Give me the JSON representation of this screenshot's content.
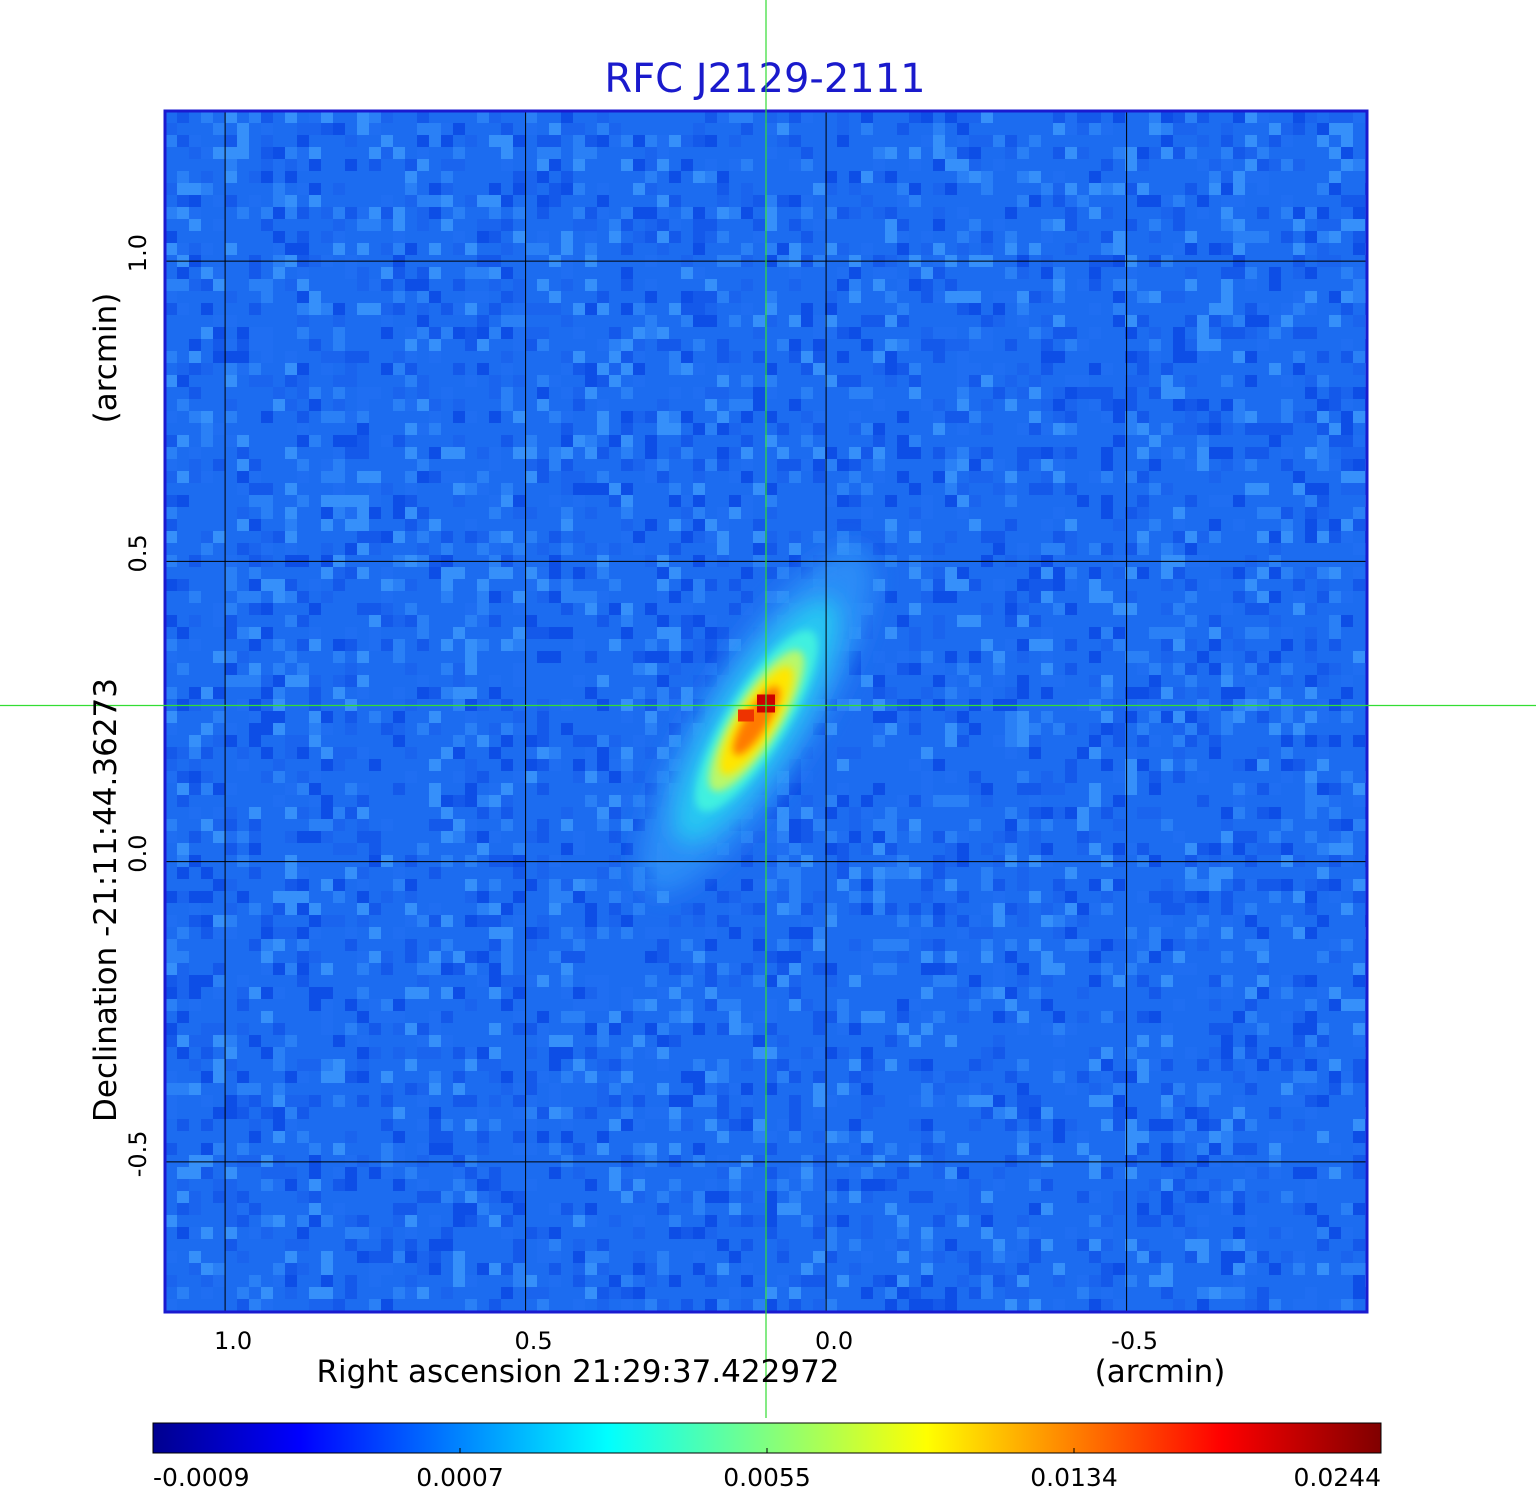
{
  "chart_data": {
    "type": "heatmap",
    "title": "RFC J2129-2111",
    "xlabel": "Right ascension  21:29:37.422972",
    "xunit": "(arcmin)",
    "ylabel": "Declination  -21:11:44.36273",
    "yunit": "(arcmin)",
    "x_ticks": [
      "1.0",
      "0.5",
      "0.0",
      "-0.5"
    ],
    "y_ticks": [
      "1.0",
      "0.5",
      "0.0",
      "-0.5"
    ],
    "x_tick_values": [
      1.0,
      0.5,
      0.0,
      -0.5
    ],
    "y_tick_values": [
      1.0,
      0.5,
      0.0,
      -0.5
    ],
    "xlim": [
      1.1,
      -0.9
    ],
    "ylim": [
      -0.75,
      1.25
    ],
    "grid": true,
    "crosshair": {
      "x": 0.1,
      "y": 0.26
    },
    "source": {
      "x": 0.1,
      "y": 0.26,
      "peak": 0.0244,
      "major_axis_arcmin": 0.35,
      "minor_axis_arcmin": 0.1,
      "position_angle_deg": 58
    },
    "colormap": "jet",
    "colorbar": {
      "ticks": [
        "-0.0009",
        "0.0007",
        "0.0055",
        "0.0134",
        "0.0244"
      ],
      "min": -0.0009,
      "max": 0.0244
    },
    "colors": {
      "title": "#1a1acc",
      "frame": "#1a1ad0",
      "grid": "#000000",
      "crosshair": "#33dd33"
    }
  }
}
